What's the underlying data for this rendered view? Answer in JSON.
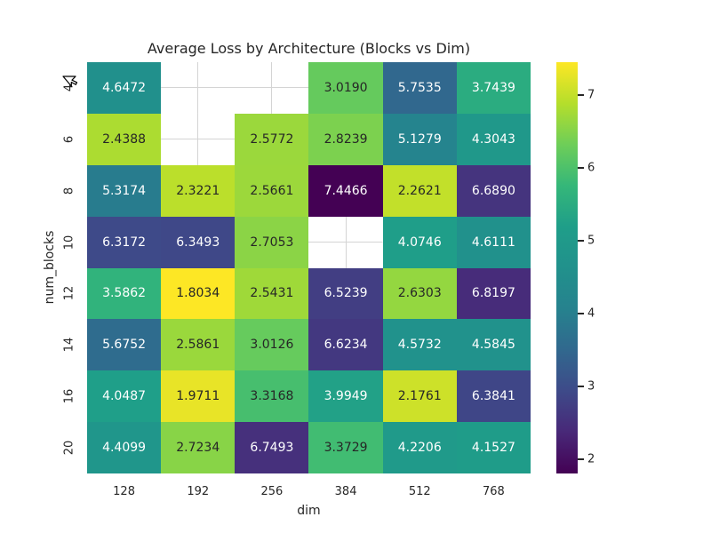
{
  "chart_data": {
    "type": "heatmap",
    "title": "Average Loss by Architecture (Blocks vs Dim)",
    "xlabel": "dim",
    "ylabel": "num_blocks",
    "x_categories": [
      "128",
      "192",
      "256",
      "384",
      "512",
      "768"
    ],
    "y_categories": [
      "4",
      "6",
      "8",
      "10",
      "12",
      "14",
      "16",
      "20"
    ],
    "values": [
      [
        4.6472,
        null,
        null,
        3.019,
        5.7535,
        3.7439
      ],
      [
        2.4388,
        null,
        2.5772,
        2.8239,
        5.1279,
        4.3043
      ],
      [
        5.3174,
        2.3221,
        2.5661,
        7.4466,
        2.2621,
        6.689
      ],
      [
        6.3172,
        6.3493,
        2.7053,
        null,
        4.0746,
        4.6111
      ],
      [
        3.5862,
        1.8034,
        2.5431,
        6.5239,
        2.6303,
        6.8197
      ],
      [
        5.6752,
        2.5861,
        3.0126,
        6.6234,
        4.5732,
        4.5845
      ],
      [
        4.0487,
        1.9711,
        3.3168,
        3.9949,
        2.1761,
        6.3841
      ],
      [
        4.4099,
        2.7234,
        6.7493,
        3.3729,
        4.2206,
        4.1527
      ]
    ],
    "value_decimals": 4,
    "vmin": 1.8034,
    "vmax": 7.4466,
    "colormap": "viridis_r",
    "colormap_stops": [
      "#440154",
      "#482878",
      "#3e4a89",
      "#31688e",
      "#26828e",
      "#21918c",
      "#1f9e89",
      "#35b779",
      "#6ece58",
      "#b5de2b",
      "#fde725"
    ],
    "colorbar_ticks": [
      2,
      3,
      4,
      5,
      6,
      7
    ],
    "legend_position": "right-colorbar",
    "grid": "whitegrid-in-empty-cells",
    "colors": {
      "background": "#ffffff",
      "text": "#262626",
      "annotation_light": "#ffffff",
      "annotation_dark": "#262626",
      "grid_line": "#d4d4d4",
      "tick_mark": "#262626"
    }
  }
}
